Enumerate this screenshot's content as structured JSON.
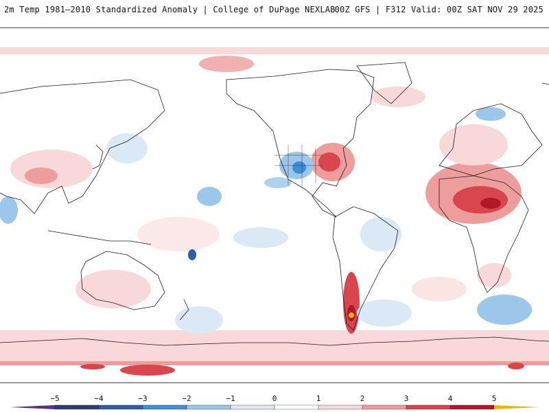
{
  "header": {
    "title_left": "2m Temp 1981–2010 Standardized Anomaly | College of DuPage NEXLAB",
    "title_right": "00Z GFS | F312 Valid: 00Z SAT NOV 29 2025"
  },
  "legend": {
    "ticks": [
      "−5",
      "−4",
      "−3",
      "−2",
      "−1",
      "0",
      "1",
      "2",
      "3",
      "4",
      "5"
    ],
    "colors": {
      "lt_-5": "#5a2d8a",
      "-5_-4": "#2b3c78",
      "-4_-3": "#2e5fa5",
      "-3_-2": "#3f8fd4",
      "-2_-1": "#9cc6ea",
      "-1_0": "#dbe8f5",
      "0_1": "#ffffff",
      "1_2": "#f8d8d8",
      "2_3": "#ee9d9d",
      "3_4": "#d9454c",
      "4_5": "#b01826",
      "5_6": "#7a0a12",
      "gt_6": "#f0b400"
    }
  },
  "map": {
    "colors": {
      "warm_light": "#f8d8d8",
      "warm_med": "#ee9d9d",
      "warm_strong": "#d9454c",
      "warm_extreme": "#b01826",
      "hot_spot": "#f0b400",
      "cool_light": "#dbe8f5",
      "cool_med": "#9cc6ea",
      "cool_strong": "#3f8fd4",
      "coastline": "#1a1a1a"
    }
  }
}
